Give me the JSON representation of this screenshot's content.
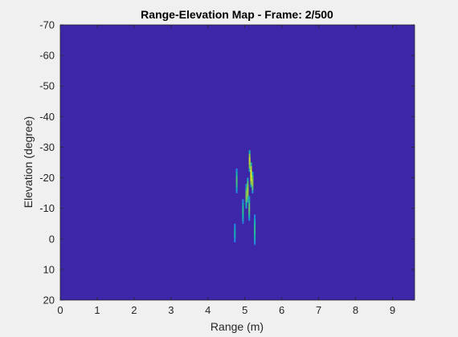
{
  "chart_data": {
    "type": "heatmap",
    "title": "Range-Elevation Map - Frame: 2/500",
    "xlabel": "Range (m)",
    "ylabel": "Elevation (degree)",
    "xlim": [
      0,
      9.6
    ],
    "ylim": [
      -70,
      20
    ],
    "y_axis_reversed": true,
    "xticks": [
      0,
      1,
      2,
      3,
      4,
      5,
      6,
      7,
      8,
      9
    ],
    "yticks": [
      -70,
      -60,
      -50,
      -40,
      -30,
      -20,
      -10,
      0,
      10,
      20
    ],
    "grid": false,
    "colormap": "parula",
    "background_value": 0,
    "hotspots": [
      {
        "range": 5.13,
        "elevation_from": -29,
        "elevation_to": -22,
        "intensity": 0.85
      },
      {
        "range": 5.17,
        "elevation_from": -25,
        "elevation_to": -17,
        "intensity": 1.0
      },
      {
        "range": 5.21,
        "elevation_from": -22,
        "elevation_to": -15,
        "intensity": 0.75
      },
      {
        "range": 5.08,
        "elevation_from": -20,
        "elevation_to": -12,
        "intensity": 0.8
      },
      {
        "range": 5.04,
        "elevation_from": -18,
        "elevation_to": -10,
        "intensity": 0.7
      },
      {
        "range": 4.95,
        "elevation_from": -13,
        "elevation_to": -5,
        "intensity": 0.55
      },
      {
        "range": 4.78,
        "elevation_from": -23,
        "elevation_to": -15,
        "intensity": 0.6
      },
      {
        "range": 5.12,
        "elevation_from": -14,
        "elevation_to": -6,
        "intensity": 0.65
      },
      {
        "range": 4.73,
        "elevation_from": -5,
        "elevation_to": 1,
        "intensity": 0.45
      },
      {
        "range": 5.27,
        "elevation_from": -8,
        "elevation_to": 2,
        "intensity": 0.55
      }
    ]
  },
  "colors": {
    "background_low": "#3e26a8",
    "figure_bg": "#f0f0f0",
    "axis_color": "#262626"
  }
}
